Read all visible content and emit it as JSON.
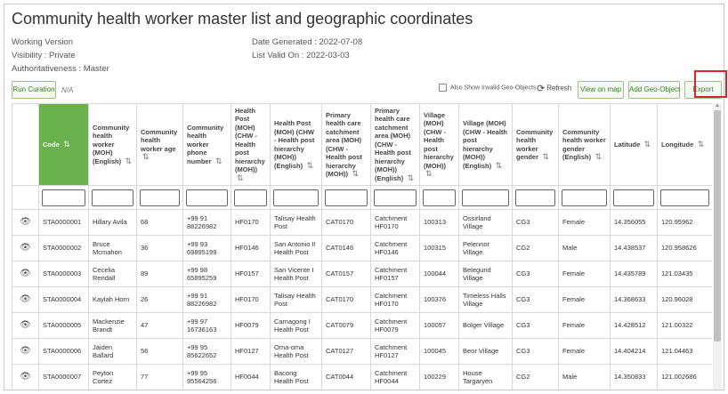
{
  "page": {
    "title": "Community health worker master list and geographic coordinates",
    "working_version": "Working Version",
    "visibility": "Visibility : Private",
    "authoritativeness": "Authoritativeness : Master",
    "date_generated": "Date Generated : 2022-07-08",
    "list_valid_on": "List Valid On : 2022-03-03"
  },
  "toolbar": {
    "run_curation": "Run Curation",
    "na": "N/A",
    "show_invalid": "Also Show Invalid Geo-Objects",
    "refresh": "Refresh",
    "view_on_map": "View on map",
    "add_geo_object": "Add Geo-Object",
    "export": "Export"
  },
  "table": {
    "sort_symbol": "⇅",
    "headers": [
      "",
      "Code",
      "Community health worker (MOH) (English)",
      "Community health worker age",
      "Community health worker phone number",
      "Health Post (MOH) (CHW - Health post hierarchy (MOH))",
      "Health Post (MOH) (CHW - Health post hierarchy (MOH)) (English)",
      "Primary health care catchment area (MOH) (CHW - Health post hierarchy (MOH))",
      "Primary health care catchment area (MOH) (CHW - Health post hierarchy (MOH)) (English)",
      "Village (MOH) (CHW - Health post hierarchy (MOH))",
      "Village (MOH) (CHW - Health post hierarchy (MOH)) (English)",
      "Community health worker gender",
      "Community health worker gender (English)",
      "Latitude",
      "Longitude"
    ],
    "rows": [
      [
        "STA0000001",
        "Hillary Avila",
        "68",
        "+99 91 88226982",
        "HF0170",
        "Talisay Health Post",
        "CAT0170",
        "Catchment HF0170",
        "100313",
        "Ossirland Village",
        "CG3",
        "Female",
        "14.356055",
        "120.95962"
      ],
      [
        "STA0000002",
        "Bruce Mcmahon",
        "36",
        "+99 93 69895199",
        "HF0146",
        "San Antonio II Health Post",
        "CAT0146",
        "Catchment HF0146",
        "100315",
        "Pelennor Village",
        "CG2",
        "Male",
        "14.438537",
        "120.958626"
      ],
      [
        "STA0000003",
        "Cecelia Rendall",
        "89",
        "+99 98 65895259",
        "HF0157",
        "San Vicente I Health Post",
        "CAT0157",
        "Catchment HF0157",
        "100044",
        "Belegund Village",
        "CG3",
        "Female",
        "14.435789",
        "121.03435"
      ],
      [
        "STA0000004",
        "Kaylah Horn",
        "26",
        "+99 91 88226982",
        "HF0170",
        "Talisay Health Post",
        "CAT0170",
        "Catchment HF0170",
        "100376",
        "Timeless Halls Village",
        "CG3",
        "Female",
        "14.368633",
        "120.96028"
      ],
      [
        "STA0000005",
        "Mackenzie Brandt",
        "47",
        "+99 97 16736163",
        "HF0079",
        "Camagong I Health Post",
        "CAT0079",
        "Catchment HF0079",
        "100057",
        "Bolger Village",
        "CG3",
        "Female",
        "14.428512",
        "121.00322"
      ],
      [
        "STA0000006",
        "Jaiden Ballard",
        "56",
        "+99 95 85622652",
        "HF0127",
        "Oma-oma Health Post",
        "CAT0127",
        "Catchment HF0127",
        "100045",
        "Beor Village",
        "CG3",
        "Female",
        "14.404214",
        "121.04463"
      ],
      [
        "STA0000007",
        "Peyton Cortez",
        "77",
        "+99 95 95564256",
        "HF0044",
        "Bacong Health Post",
        "CAT0044",
        "Catchment HF0044",
        "100229",
        "House Targaryen",
        "CG2",
        "Male",
        "14.350833",
        "121.002686"
      ]
    ]
  }
}
